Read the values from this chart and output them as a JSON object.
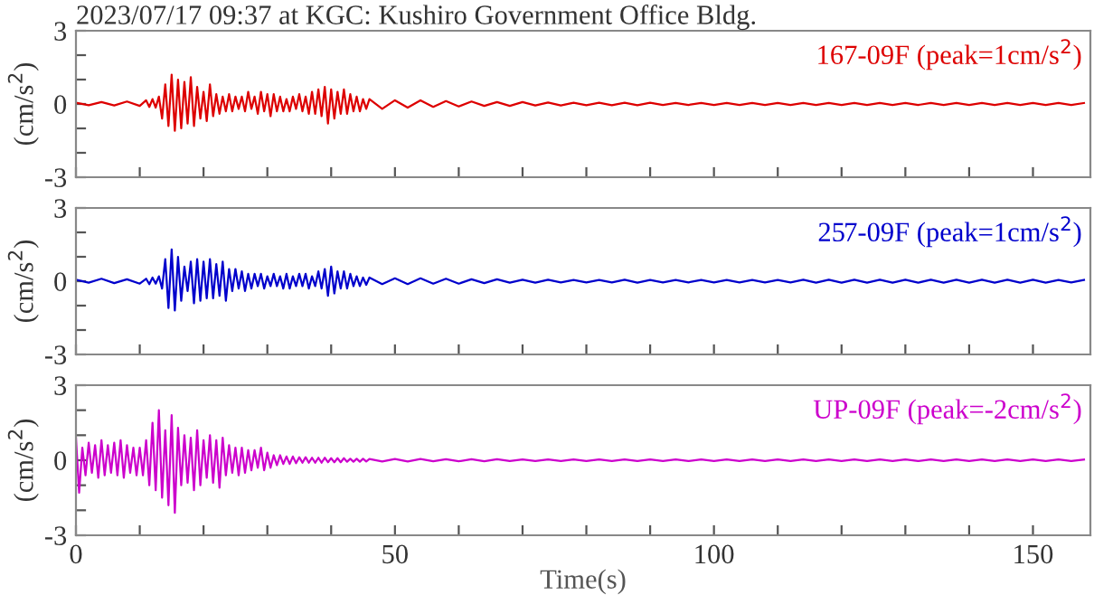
{
  "chart_data": [
    {
      "type": "line",
      "title": "2023/07/17 09:37 at KGC: Kushiro Government Office Bldg.",
      "ylabel": "(cm/s$^{2}$)",
      "tick_labels": "y",
      "legend": "top right",
      "grid": false,
      "marker": "none",
      "line_style": "solid",
      "xlim": [
        0,
        159
      ],
      "xticks": [
        {
          "value": 0,
          "label": null
        },
        {
          "value": 10,
          "label": null
        },
        {
          "value": 20,
          "label": null
        },
        {
          "value": 30,
          "label": null
        },
        {
          "value": 40,
          "label": null
        },
        {
          "value": 50,
          "label": null
        },
        {
          "value": 60,
          "label": null
        },
        {
          "value": 70,
          "label": null
        },
        {
          "value": 80,
          "label": null
        },
        {
          "value": 90,
          "label": null
        },
        {
          "value": 100,
          "label": null
        },
        {
          "value": 110,
          "label": null
        },
        {
          "value": 120,
          "label": null
        },
        {
          "value": 130,
          "label": null
        },
        {
          "value": 140,
          "label": null
        },
        {
          "value": 150,
          "label": null
        }
      ],
      "ylim": [
        -3,
        3
      ],
      "yticks": [
        -3,
        {
          "value": -2,
          "label": null
        },
        {
          "value": -1,
          "label": null
        },
        0,
        {
          "value": 1,
          "label": null
        },
        {
          "value": 2,
          "label": null
        },
        3
      ],
      "series": [
        {
          "name": "167-09F (peak=1cm/s$^{2}$)",
          "color": "#dd0000",
          "x": [
            0,
            2,
            4,
            6,
            8,
            10,
            11,
            11.5,
            12,
            12.5,
            13,
            13.5,
            14,
            14.5,
            15,
            15.5,
            16,
            16.5,
            17,
            17.5,
            18,
            18.5,
            19,
            19.5,
            20,
            20.5,
            21,
            21.5,
            22,
            22.5,
            23,
            23.5,
            24,
            24.5,
            25,
            25.5,
            26,
            26.5,
            27,
            27.5,
            28,
            28.5,
            29,
            29.5,
            30,
            30.5,
            31,
            31.5,
            32,
            32.5,
            33,
            33.5,
            34,
            34.5,
            35,
            35.5,
            36,
            36.5,
            37,
            37.5,
            38,
            38.5,
            39,
            39.5,
            40,
            40.5,
            41,
            41.5,
            42,
            42.5,
            43,
            43.5,
            44,
            44.5,
            45,
            45.5,
            46,
            48,
            50,
            52,
            54,
            56,
            58,
            60,
            62,
            64,
            66,
            68,
            70,
            72,
            74,
            76,
            78,
            80,
            82,
            84,
            86,
            88,
            90,
            92,
            94,
            96,
            98,
            100,
            102,
            104,
            106,
            108,
            110,
            112,
            114,
            116,
            118,
            120,
            122,
            124,
            126,
            128,
            130,
            132,
            134,
            136,
            138,
            140,
            142,
            144,
            146,
            148,
            150,
            152,
            154,
            156,
            158
          ],
          "values": [
            0.05,
            -0.05,
            0.08,
            -0.06,
            0.1,
            -0.08,
            0.15,
            -0.12,
            0.2,
            -0.15,
            0.3,
            -0.6,
            0.8,
            -0.9,
            1.2,
            -1.1,
            1.0,
            -1.0,
            0.9,
            -0.8,
            1.1,
            -0.9,
            0.7,
            -0.6,
            0.5,
            -0.7,
            0.8,
            -0.5,
            0.4,
            -0.4,
            0.3,
            -0.3,
            0.4,
            -0.3,
            0.3,
            -0.2,
            0.3,
            -0.3,
            0.5,
            -0.2,
            0.3,
            -0.4,
            0.5,
            -0.3,
            0.4,
            -0.5,
            0.4,
            -0.3,
            0.3,
            -0.3,
            0.2,
            -0.3,
            0.3,
            -0.2,
            0.4,
            -0.3,
            0.3,
            -0.4,
            0.5,
            -0.4,
            0.6,
            -0.5,
            0.7,
            -0.8,
            0.6,
            -0.6,
            0.5,
            -0.4,
            0.6,
            -0.4,
            0.4,
            -0.3,
            0.3,
            -0.3,
            0.2,
            -0.2,
            0.2,
            -0.2,
            0.15,
            -0.15,
            0.15,
            -0.12,
            0.12,
            -0.1,
            0.1,
            -0.08,
            0.08,
            -0.08,
            0.08,
            -0.06,
            0.06,
            -0.06,
            0.05,
            -0.05,
            0.05,
            -0.05,
            0.05,
            -0.05,
            0.05,
            -0.04,
            0.04,
            -0.04,
            0.04,
            -0.04,
            0.04,
            -0.04,
            0.04,
            -0.04,
            0.04,
            -0.04,
            0.04,
            -0.04,
            0.04,
            -0.04,
            0.04,
            -0.04,
            0.04,
            -0.04,
            0.04,
            -0.04,
            0.04,
            -0.04,
            0.04,
            -0.04,
            0.04,
            -0.04,
            0.04,
            -0.04,
            0.04,
            -0.04,
            0.04,
            -0.04,
            0.04
          ]
        }
      ]
    },
    {
      "type": "line",
      "ylabel": "(cm/s$^{2}$)",
      "tick_labels": "y",
      "legend": "top right",
      "grid": false,
      "marker": "none",
      "line_style": "solid",
      "xlim": [
        0,
        159
      ],
      "xticks": [
        {
          "value": 0,
          "label": null
        },
        {
          "value": 10,
          "label": null
        },
        {
          "value": 20,
          "label": null
        },
        {
          "value": 30,
          "label": null
        },
        {
          "value": 40,
          "label": null
        },
        {
          "value": 50,
          "label": null
        },
        {
          "value": 60,
          "label": null
        },
        {
          "value": 70,
          "label": null
        },
        {
          "value": 80,
          "label": null
        },
        {
          "value": 90,
          "label": null
        },
        {
          "value": 100,
          "label": null
        },
        {
          "value": 110,
          "label": null
        },
        {
          "value": 120,
          "label": null
        },
        {
          "value": 130,
          "label": null
        },
        {
          "value": 140,
          "label": null
        },
        {
          "value": 150,
          "label": null
        }
      ],
      "ylim": [
        -3,
        3
      ],
      "yticks": [
        -3,
        {
          "value": -2,
          "label": null
        },
        {
          "value": -1,
          "label": null
        },
        0,
        {
          "value": 1,
          "label": null
        },
        {
          "value": 2,
          "label": null
        },
        3
      ],
      "series": [
        {
          "name": "257-09F (peak=1cm/s$^{2}$)",
          "color": "#0000cc",
          "x": [
            0,
            2,
            4,
            6,
            8,
            10,
            11,
            11.5,
            12,
            12.5,
            13,
            13.5,
            14,
            14.5,
            15,
            15.5,
            16,
            16.5,
            17,
            17.5,
            18,
            18.5,
            19,
            19.5,
            20,
            20.5,
            21,
            21.5,
            22,
            22.5,
            23,
            23.5,
            24,
            24.5,
            25,
            25.5,
            26,
            26.5,
            27,
            27.5,
            28,
            28.5,
            29,
            29.5,
            30,
            30.5,
            31,
            31.5,
            32,
            32.5,
            33,
            33.5,
            34,
            34.5,
            35,
            35.5,
            36,
            36.5,
            37,
            37.5,
            38,
            38.5,
            39,
            39.5,
            40,
            40.5,
            41,
            41.5,
            42,
            42.5,
            43,
            43.5,
            44,
            44.5,
            45,
            45.5,
            46,
            48,
            50,
            52,
            54,
            56,
            58,
            60,
            62,
            64,
            66,
            68,
            70,
            72,
            74,
            76,
            78,
            80,
            82,
            84,
            86,
            88,
            90,
            92,
            94,
            96,
            98,
            100,
            102,
            104,
            106,
            108,
            110,
            112,
            114,
            116,
            118,
            120,
            122,
            124,
            126,
            128,
            130,
            132,
            134,
            136,
            138,
            140,
            142,
            144,
            146,
            148,
            150,
            152,
            154,
            156,
            158
          ],
          "values": [
            0.06,
            -0.06,
            0.1,
            -0.08,
            0.08,
            -0.1,
            0.1,
            -0.12,
            0.15,
            -0.1,
            0.2,
            -0.3,
            0.9,
            -1.1,
            1.3,
            -1.2,
            1.0,
            -0.8,
            0.6,
            -0.4,
            0.8,
            -0.9,
            0.9,
            -0.8,
            0.8,
            -0.7,
            0.9,
            -0.7,
            0.7,
            -0.6,
            0.8,
            -0.8,
            0.5,
            -0.4,
            0.5,
            -0.3,
            0.4,
            -0.4,
            0.3,
            -0.3,
            0.3,
            -0.2,
            0.3,
            -0.3,
            0.2,
            -0.2,
            0.3,
            -0.2,
            0.2,
            -0.3,
            0.3,
            -0.3,
            0.2,
            -0.2,
            0.3,
            -0.2,
            0.3,
            -0.3,
            0.2,
            -0.2,
            0.4,
            -0.3,
            0.5,
            -0.6,
            0.6,
            -0.5,
            0.4,
            -0.3,
            0.4,
            -0.3,
            0.3,
            -0.2,
            0.2,
            -0.2,
            0.15,
            -0.15,
            0.15,
            -0.12,
            0.12,
            -0.12,
            0.12,
            -0.1,
            0.1,
            -0.1,
            0.08,
            -0.08,
            0.08,
            -0.06,
            0.06,
            -0.06,
            0.06,
            -0.05,
            0.05,
            -0.05,
            0.05,
            -0.05,
            0.06,
            -0.06,
            0.05,
            -0.05,
            0.05,
            -0.05,
            0.05,
            -0.05,
            0.05,
            -0.05,
            0.05,
            -0.05,
            0.05,
            -0.05,
            0.06,
            -0.06,
            0.06,
            -0.06,
            0.06,
            -0.06,
            0.06,
            -0.06,
            0.06,
            -0.06,
            0.06,
            -0.06,
            0.06,
            -0.06,
            0.06,
            -0.06,
            0.06,
            -0.06,
            0.06,
            -0.06,
            0.05,
            -0.05,
            0.05
          ]
        }
      ]
    },
    {
      "type": "line",
      "ylabel": "(cm/s$^{2}$)",
      "xlabel": "Time(s)",
      "legend": "top right",
      "grid": false,
      "marker": "none",
      "line_style": "solid",
      "xlim": [
        0,
        159
      ],
      "xticks": [
        0,
        {
          "value": 10,
          "label": null
        },
        {
          "value": 20,
          "label": null
        },
        {
          "value": 30,
          "label": null
        },
        {
          "value": 40,
          "label": null
        },
        50,
        {
          "value": 60,
          "label": null
        },
        {
          "value": 70,
          "label": null
        },
        {
          "value": 80,
          "label": null
        },
        {
          "value": 90,
          "label": null
        },
        100,
        {
          "value": 110,
          "label": null
        },
        {
          "value": 120,
          "label": null
        },
        {
          "value": 130,
          "label": null
        },
        {
          "value": 140,
          "label": null
        },
        150
      ],
      "ylim": [
        -3,
        3
      ],
      "yticks": [
        -3,
        {
          "value": -2,
          "label": null
        },
        {
          "value": -1,
          "label": null
        },
        0,
        {
          "value": 1,
          "label": null
        },
        {
          "value": 2,
          "label": null
        },
        3
      ],
      "series": [
        {
          "name": "UP-09F (peak=-2cm/s$^{2}$)",
          "color": "#cc00cc",
          "x": [
            0,
            0.5,
            1,
            1.5,
            2,
            2.5,
            3,
            3.5,
            4,
            4.5,
            5,
            5.5,
            6,
            6.5,
            7,
            7.5,
            8,
            8.5,
            9,
            9.5,
            10,
            10.5,
            11,
            11.5,
            12,
            12.5,
            13,
            13.5,
            14,
            14.5,
            15,
            15.5,
            16,
            16.5,
            17,
            17.5,
            18,
            18.5,
            19,
            19.5,
            20,
            20.5,
            21,
            21.5,
            22,
            22.5,
            23,
            23.5,
            24,
            24.5,
            25,
            25.5,
            26,
            26.5,
            27,
            27.5,
            28,
            28.5,
            29,
            29.5,
            30,
            30.5,
            31,
            31.5,
            32,
            32.5,
            33,
            33.5,
            34,
            34.5,
            35,
            35.5,
            36,
            36.5,
            37,
            37.5,
            38,
            38.5,
            39,
            39.5,
            40,
            40.5,
            41,
            41.5,
            42,
            42.5,
            43,
            43.5,
            44,
            44.5,
            45,
            45.5,
            46,
            48,
            50,
            52,
            54,
            56,
            58,
            60,
            62,
            64,
            66,
            68,
            70,
            72,
            74,
            76,
            78,
            80,
            82,
            84,
            86,
            88,
            90,
            92,
            94,
            96,
            98,
            100,
            102,
            104,
            106,
            108,
            110,
            112,
            114,
            116,
            118,
            120,
            122,
            124,
            126,
            128,
            130,
            132,
            134,
            136,
            138,
            140,
            142,
            144,
            146,
            148,
            150,
            152,
            154,
            156,
            158
          ],
          "values": [
            0.9,
            -1.3,
            0.5,
            -0.6,
            0.7,
            -0.5,
            0.6,
            -0.7,
            0.8,
            -0.6,
            0.6,
            -0.5,
            0.7,
            -0.6,
            0.8,
            -0.7,
            0.6,
            -0.5,
            0.5,
            -0.6,
            0.5,
            -0.6,
            0.8,
            -1.0,
            1.5,
            -1.2,
            2.0,
            -1.5,
            1.2,
            -1.8,
            1.8,
            -2.1,
            1.3,
            -1.0,
            1.0,
            -0.9,
            0.9,
            -1.2,
            1.2,
            -1.0,
            0.8,
            -0.7,
            1.0,
            -0.9,
            0.8,
            -1.1,
            0.9,
            -0.6,
            0.6,
            -0.5,
            0.5,
            -0.6,
            0.5,
            -0.5,
            0.4,
            -0.4,
            0.4,
            -0.3,
            0.5,
            -0.4,
            0.3,
            -0.3,
            0.2,
            -0.2,
            0.2,
            -0.15,
            0.15,
            -0.15,
            0.15,
            -0.12,
            0.12,
            -0.1,
            0.12,
            -0.1,
            0.1,
            -0.1,
            0.1,
            -0.1,
            0.1,
            -0.08,
            0.08,
            -0.08,
            0.08,
            -0.08,
            0.08,
            -0.06,
            0.06,
            -0.06,
            0.06,
            -0.06,
            0.06,
            -0.05,
            0.05,
            -0.05,
            0.05,
            -0.05,
            0.05,
            -0.04,
            0.04,
            -0.04,
            0.04,
            -0.04,
            0.04,
            -0.03,
            0.03,
            -0.03,
            0.03,
            -0.03,
            0.03,
            -0.03,
            0.03,
            -0.03,
            0.03,
            -0.03,
            0.03,
            -0.03,
            0.03,
            -0.03,
            0.03,
            -0.03,
            0.03,
            -0.03,
            0.03,
            -0.03,
            0.03,
            -0.03,
            0.03,
            -0.03,
            0.03,
            -0.03,
            0.03,
            -0.03,
            0.03,
            -0.03,
            0.03,
            -0.03,
            0.03,
            -0.03,
            0.03,
            -0.03,
            0.03,
            -0.03,
            0.03,
            -0.03,
            0.03,
            -0.03,
            0.03,
            -0.03,
            0.03
          ]
        }
      ]
    }
  ]
}
